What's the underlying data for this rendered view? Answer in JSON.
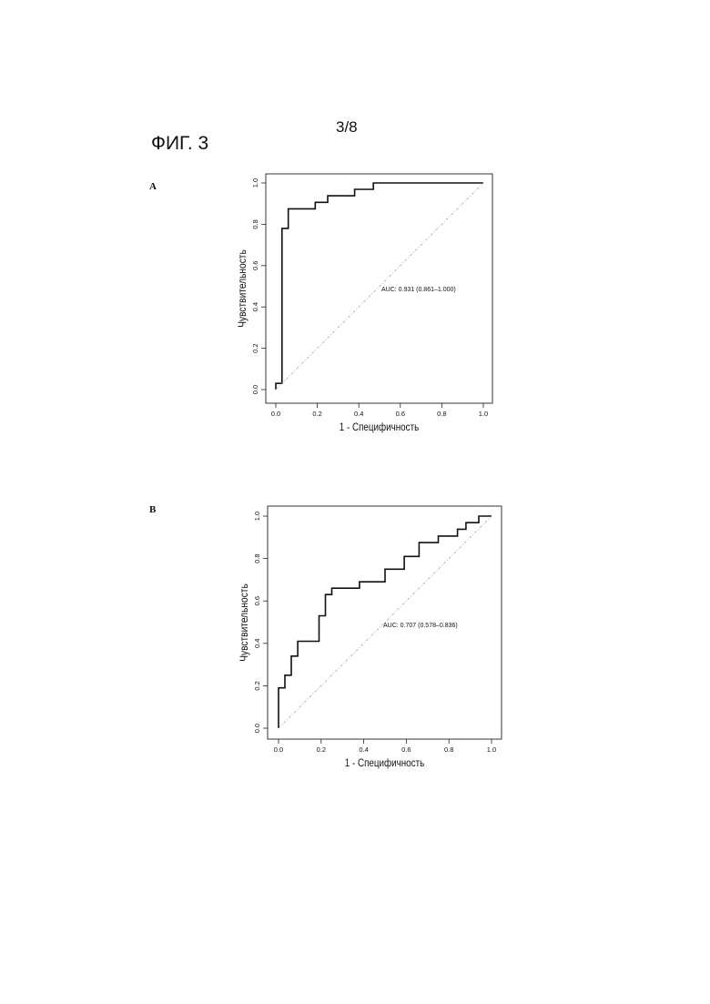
{
  "page": {
    "number": "3/8",
    "figure_title": "ФИГ. 3"
  },
  "chart_data": [
    {
      "type": "line",
      "panel_label": "A",
      "xlabel": "1 - Специфичность",
      "ylabel": "Чувствительность",
      "xlim": [
        0,
        1
      ],
      "ylim": [
        0,
        1
      ],
      "xticks": [
        "0.0",
        "0.2",
        "0.4",
        "0.6",
        "0.8",
        "1.0"
      ],
      "yticks": [
        "0.0",
        "0.2",
        "0.4",
        "0.6",
        "0.8",
        "1.0"
      ],
      "annotation": "AUC: 0.931 (0.861–1.000)",
      "grid": false,
      "series": [
        {
          "style": "step",
          "x": [
            0.0,
            0.0,
            0.03,
            0.03,
            0.06,
            0.06,
            0.19,
            0.19,
            0.25,
            0.25,
            0.38,
            0.38,
            0.47,
            0.47,
            1.0
          ],
          "y": [
            0.0,
            0.03,
            0.03,
            0.78,
            0.78,
            0.875,
            0.875,
            0.906,
            0.906,
            0.938,
            0.938,
            0.969,
            0.969,
            1.0,
            1.0
          ]
        },
        {
          "style": "reference",
          "x": [
            0,
            1
          ],
          "y": [
            0,
            1
          ]
        }
      ]
    },
    {
      "type": "line",
      "panel_label": "B",
      "xlabel": "1 - Специфичность",
      "ylabel": "Чувствительность",
      "xlim": [
        0,
        1
      ],
      "ylim": [
        0,
        1
      ],
      "xticks": [
        "0.0",
        "0.2",
        "0.4",
        "0.6",
        "0.8",
        "1.0"
      ],
      "yticks": [
        "0.0",
        "0.2",
        "0.4",
        "0.6",
        "0.8",
        "1.0"
      ],
      "annotation": "AUC: 0.707 (0.578–0.836)",
      "grid": false,
      "series": [
        {
          "style": "step",
          "x": [
            0.0,
            0.0,
            0.03,
            0.03,
            0.06,
            0.06,
            0.09,
            0.09,
            0.19,
            0.19,
            0.22,
            0.22,
            0.25,
            0.25,
            0.38,
            0.38,
            0.5,
            0.5,
            0.59,
            0.59,
            0.66,
            0.66,
            0.75,
            0.75,
            0.84,
            0.84,
            0.88,
            0.88,
            0.94,
            0.94,
            1.0
          ],
          "y": [
            0.0,
            0.19,
            0.19,
            0.25,
            0.25,
            0.34,
            0.34,
            0.41,
            0.41,
            0.53,
            0.53,
            0.63,
            0.63,
            0.66,
            0.66,
            0.69,
            0.69,
            0.75,
            0.75,
            0.81,
            0.81,
            0.875,
            0.875,
            0.906,
            0.906,
            0.938,
            0.938,
            0.969,
            0.969,
            1.0,
            1.0
          ]
        },
        {
          "style": "reference",
          "x": [
            0,
            1
          ],
          "y": [
            0,
            1
          ]
        }
      ]
    }
  ]
}
